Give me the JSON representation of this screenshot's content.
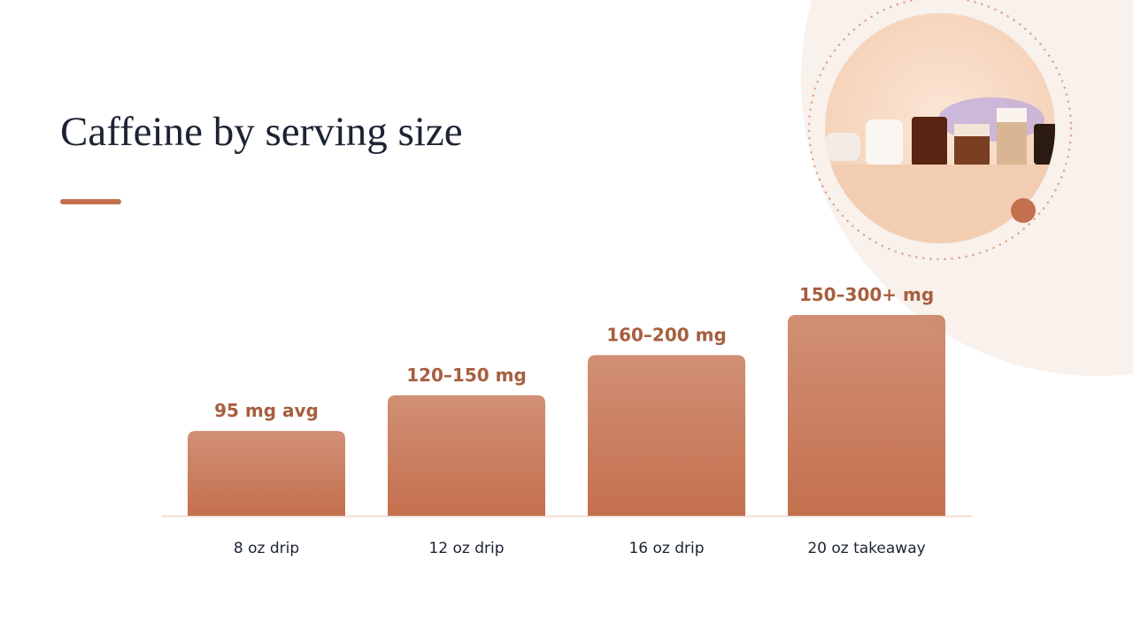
{
  "chart_data": {
    "type": "bar",
    "title": "Caffeine by serving size",
    "categories": [
      "8 oz drip",
      "12 oz drip",
      "16 oz drip",
      "20 oz takeaway"
    ],
    "values": [
      95,
      135,
      180,
      225
    ],
    "value_labels": [
      "95 mg avg",
      "120–150 mg",
      "160–200 mg",
      "150–300+ mg"
    ],
    "color": "#c4704e"
  }
}
